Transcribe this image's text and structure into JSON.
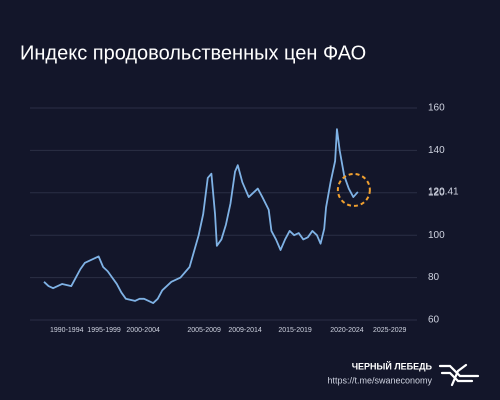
{
  "chart_data": {
    "type": "line",
    "title": "Индекс продовольственных цен ФАО",
    "x": [
      1990,
      1990.5,
      1991,
      1991.5,
      1992,
      1993,
      1993.5,
      1994,
      1994.5,
      1995,
      1996,
      1996.5,
      1997,
      1997.5,
      1998,
      1998.5,
      1999,
      2000,
      2000.5,
      2001,
      2002,
      2002.5,
      2003,
      2004,
      2005,
      2006,
      2007,
      2007.5,
      2008,
      2008.4,
      2008.8,
      2009,
      2009.5,
      2010,
      2010.5,
      2011,
      2011.3,
      2011.8,
      2012,
      2012.5,
      2013,
      2013.5,
      2014,
      2014.7,
      2015,
      2015.5,
      2016,
      2016.5,
      2017,
      2017.5,
      2018,
      2018.5,
      2019,
      2019.5,
      2020,
      2020.4,
      2020.8,
      2021,
      2021.5,
      2022,
      2022.2,
      2022.5,
      2023,
      2023.5,
      2024,
      2024.5
    ],
    "values": [
      78,
      76,
      75,
      76,
      77,
      76,
      80,
      84,
      87,
      88,
      90,
      85,
      83,
      80,
      77,
      73,
      70,
      69,
      70,
      70,
      68,
      70,
      74,
      78,
      80,
      85,
      100,
      110,
      127,
      129,
      110,
      95,
      98,
      105,
      115,
      130,
      133,
      125,
      123,
      118,
      120,
      122,
      118,
      112,
      102,
      98,
      93,
      98,
      102,
      100,
      101,
      98,
      99,
      102,
      100,
      96,
      103,
      113,
      125,
      135,
      150,
      140,
      128,
      122,
      118,
      120.41
    ],
    "color": "#7fb2e5",
    "annotation": "120.41",
    "xlim": [
      1990,
      2031
    ],
    "xticks": [
      {
        "value": 1992.5,
        "label": "1990-1994"
      },
      {
        "value": 1996.6,
        "label": "1995-1999"
      },
      {
        "value": 2000.9,
        "label": "2000-2004"
      },
      {
        "value": 2007.6,
        "label": "2005-2009"
      },
      {
        "value": 2012.1,
        "label": "2009-2014"
      },
      {
        "value": 2017.6,
        "label": "2015-2019"
      },
      {
        "value": 2023.3,
        "label": "2020-2024"
      },
      {
        "value": 2028,
        "label": "2025-2029"
      }
    ],
    "ylim": [
      60,
      160
    ],
    "yticks": [
      60,
      80,
      100,
      120,
      140,
      160
    ],
    "grid": true
  },
  "footer": {
    "brand": "ЧЕРНЫЙ ЛЕБЕДЬ",
    "link": "https://t.me/swaneconomy"
  }
}
